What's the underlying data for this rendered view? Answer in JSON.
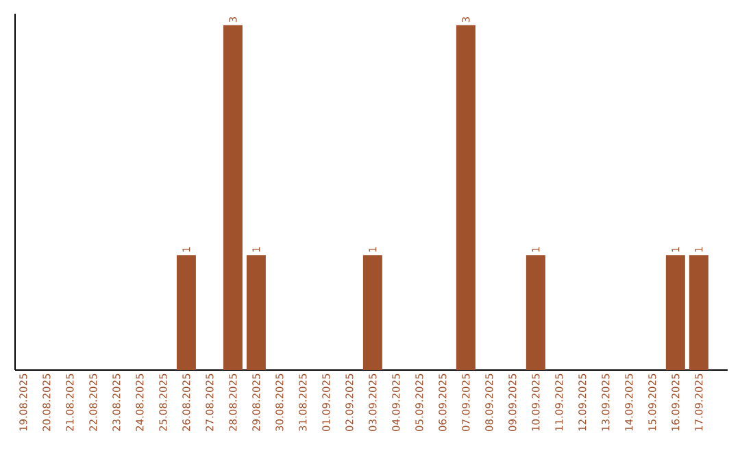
{
  "chart_data": {
    "type": "bar",
    "categories": [
      "19.08.2025",
      "20.08.2025",
      "21.08.2025",
      "22.08.2025",
      "23.08.2025",
      "24.08.2025",
      "25.08.2025",
      "26.08.2025",
      "27.08.2025",
      "28.08.2025",
      "29.08.2025",
      "30.08.2025",
      "31.08.2025",
      "01.09.2025",
      "02.09.2025",
      "03.09.2025",
      "04.09.2025",
      "05.09.2025",
      "06.09.2025",
      "07.09.2025",
      "08.09.2025",
      "09.09.2025",
      "10.09.2025",
      "11.09.2025",
      "12.09.2025",
      "13.09.2025",
      "14.09.2025",
      "15.09.2025",
      "16.09.2025",
      "17.09.2025"
    ],
    "values": [
      0,
      0,
      0,
      0,
      0,
      0,
      0,
      1,
      0,
      3,
      1,
      0,
      0,
      0,
      0,
      1,
      0,
      0,
      0,
      3,
      0,
      0,
      1,
      0,
      0,
      0,
      0,
      0,
      1,
      1
    ],
    "value_labels": [
      null,
      null,
      null,
      null,
      null,
      null,
      null,
      "1",
      null,
      "3",
      "1",
      null,
      null,
      null,
      null,
      "1",
      null,
      null,
      null,
      "3",
      null,
      null,
      "1",
      null,
      null,
      null,
      null,
      null,
      "1",
      "1"
    ],
    "color": "#a0522d",
    "ylim": [
      0,
      3.1
    ],
    "tick_labels": "x",
    "grid": false
  }
}
